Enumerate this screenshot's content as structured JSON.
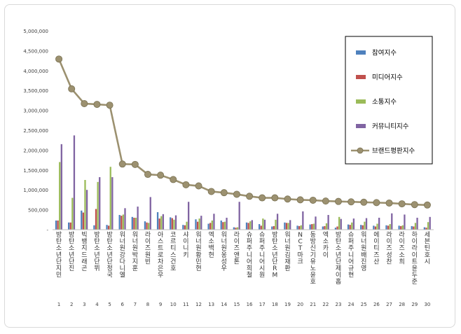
{
  "chart_data": {
    "type": "bar",
    "categories": [
      "방탄소년단 지민",
      "방탄소년단 진",
      "빅뱅 지드래곤",
      "방탄소년단 뷔",
      "방탄소년단 정국",
      "워너원 강다니엘",
      "워너원 박지훈",
      "라이즈 원빈",
      "아스트로 차은우",
      "코르티스 건호",
      "샤이니 키",
      "워너원 황민현",
      "엑소 백현",
      "워너원 옹성우",
      "라이즈 앤톤",
      "슈퍼주니어 희철",
      "슈퍼주니어 시원",
      "방탄소년단 RM",
      "워너원 김재환",
      "NCT 마크",
      "동방신기 유노윤호",
      "엑소 카이",
      "방탄소년단 제이홉",
      "슈퍼주니어 규현",
      "워너원 배진영",
      "에이티즈 산",
      "라이즈 성찬",
      "라이즈 소희",
      "하이라이트 윤두준",
      "세븐틴 호시"
    ],
    "indices": [
      "1",
      "2",
      "3",
      "4",
      "5",
      "6",
      "7",
      "8",
      "9",
      "10",
      "11",
      "12",
      "13",
      "14",
      "15",
      "16",
      "17",
      "18",
      "19",
      "20",
      "21",
      "22",
      "23",
      "24",
      "25",
      "26",
      "27",
      "28",
      "29",
      "30"
    ],
    "series": [
      {
        "name": "참여지수",
        "color": "#4f81bd",
        "values": [
          230000,
          180000,
          480000,
          110000,
          120000,
          370000,
          320000,
          210000,
          440000,
          310000,
          120000,
          260000,
          150000,
          230000,
          60000,
          180000,
          140000,
          80000,
          180000,
          100000,
          130000,
          80000,
          50000,
          130000,
          120000,
          100000,
          110000,
          100000,
          90000,
          60000
        ]
      },
      {
        "name": "미디어지수",
        "color": "#c0504d",
        "values": [
          230000,
          180000,
          430000,
          520000,
          100000,
          350000,
          300000,
          180000,
          280000,
          290000,
          110000,
          200000,
          170000,
          190000,
          50000,
          170000,
          100000,
          90000,
          170000,
          90000,
          140000,
          90000,
          80000,
          120000,
          110000,
          80000,
          100000,
          90000,
          80000,
          50000
        ]
      },
      {
        "name": "소통지수",
        "color": "#9bbb59",
        "values": [
          1700000,
          800000,
          1250000,
          1200000,
          1580000,
          380000,
          300000,
          170000,
          340000,
          250000,
          200000,
          280000,
          230000,
          200000,
          60000,
          210000,
          280000,
          250000,
          170000,
          110000,
          150000,
          160000,
          320000,
          180000,
          200000,
          150000,
          140000,
          110000,
          170000,
          190000
        ]
      },
      {
        "name": "커뮤니티지수",
        "color": "#8064a2",
        "values": [
          2150000,
          2370000,
          1000000,
          1320000,
          1320000,
          540000,
          580000,
          820000,
          390000,
          360000,
          700000,
          350000,
          400000,
          300000,
          700000,
          240000,
          250000,
          400000,
          240000,
          460000,
          330000,
          370000,
          270000,
          280000,
          290000,
          300000,
          410000,
          380000,
          300000,
          320000
        ]
      },
      {
        "name": "브랜드평판지수",
        "color": "#9c9170",
        "type": "line",
        "values": [
          4290000,
          3540000,
          3170000,
          3150000,
          3130000,
          1650000,
          1640000,
          1390000,
          1370000,
          1260000,
          1130000,
          1100000,
          960000,
          930000,
          890000,
          840000,
          800000,
          800000,
          770000,
          750000,
          740000,
          720000,
          710000,
          700000,
          690000,
          680000,
          670000,
          650000,
          630000,
          620000
        ]
      }
    ],
    "yticks": [
      "-",
      "500,000",
      "1,000,000",
      "1,500,000",
      "2,000,000",
      "2,500,000",
      "3,000,000",
      "3,500,000",
      "4,000,000",
      "4,500,000",
      "5,000,000"
    ],
    "ylim": [
      0,
      5000000
    ],
    "legend_position": "right",
    "grid": false
  }
}
